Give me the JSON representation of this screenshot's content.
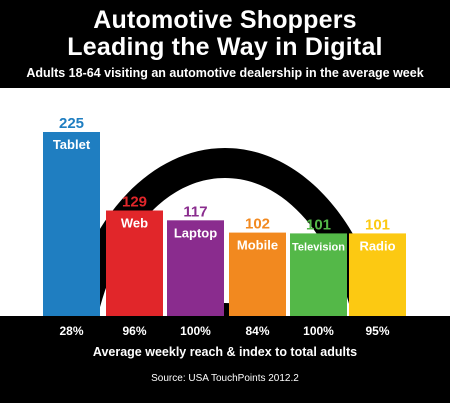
{
  "title_line1": "Automotive Shoppers",
  "title_line2": "Leading the Way in Digital",
  "subtitle": "Adults 18-64 visiting an automotive dealership in the average week",
  "colors": {
    "tablet": "#1f7ec1",
    "web": "#e1262a",
    "laptop": "#8a2c8e",
    "mobile": "#f2891f",
    "television": "#54b848",
    "radio": "#fcc912"
  },
  "chart_data": {
    "type": "bar",
    "categories": [
      "Tablet",
      "Web",
      "Laptop",
      "Mobile",
      "Television",
      "Radio"
    ],
    "values": [
      225,
      129,
      117,
      102,
      101,
      101
    ],
    "reach": [
      "28%",
      "96%",
      "100%",
      "84%",
      "100%",
      "95%"
    ],
    "xlabel": "Average weekly reach & index to total adults",
    "source": "Source: USA TouchPoints 2012.2"
  }
}
